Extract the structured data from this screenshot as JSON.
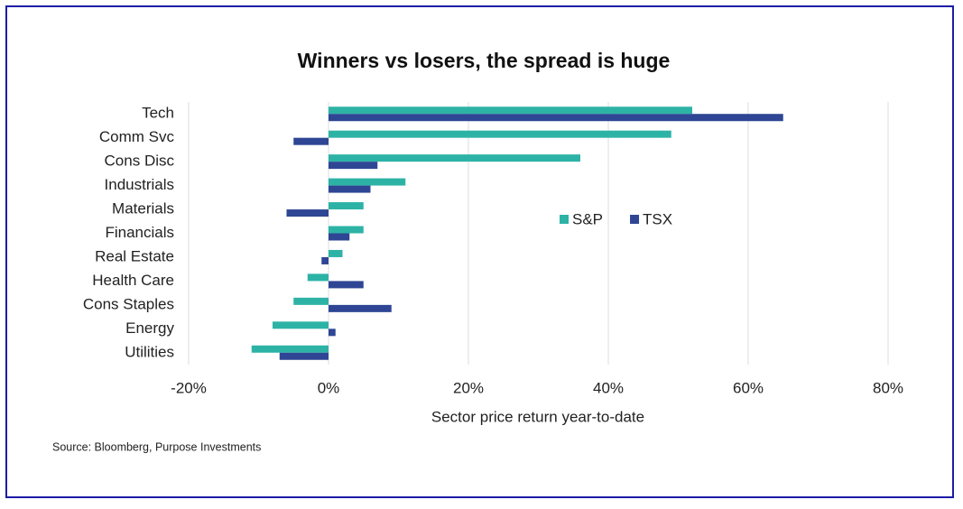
{
  "chart_data": {
    "type": "hbar",
    "title": "Winners vs losers, the spread is huge",
    "xlabel": "Sector price return year-to-date",
    "source": "Source: Bloomberg, Purpose Investments",
    "categories": [
      "Tech",
      "Comm Svc",
      "Cons Disc",
      "Industrials",
      "Materials",
      "Financials",
      "Real Estate",
      "Health Care",
      "Cons Staples",
      "Energy",
      "Utilities"
    ],
    "series": [
      {
        "name": "S&P",
        "color": "#2db3a6",
        "values": [
          52,
          49,
          36,
          11,
          5,
          5,
          2,
          -3,
          -5,
          -8,
          -11
        ]
      },
      {
        "name": "TSX",
        "color": "#2e4694",
        "values": [
          65,
          -5,
          7,
          6,
          -6,
          3,
          -1,
          5,
          9,
          1,
          -7
        ]
      }
    ],
    "xlim": [
      -20,
      80
    ],
    "xticks": [
      {
        "value": -20,
        "label": "-20%"
      },
      {
        "value": 0,
        "label": "0%"
      },
      {
        "value": 20,
        "label": "20%"
      },
      {
        "value": 40,
        "label": "40%"
      },
      {
        "value": 60,
        "label": "60%"
      },
      {
        "value": 80,
        "label": "80%"
      }
    ],
    "grid": true,
    "legend": "center right"
  }
}
